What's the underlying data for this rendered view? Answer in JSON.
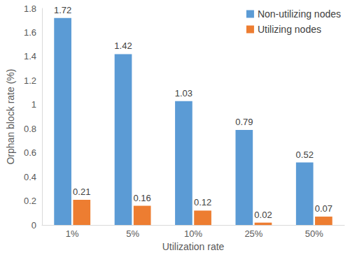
{
  "chart_data": {
    "type": "bar",
    "x_label": "Utilization rate",
    "y_label": "Orphan block rate (%)",
    "categories": [
      "1%",
      "5%",
      "10%",
      "25%",
      "50%"
    ],
    "series": [
      {
        "name": "Non-utilizing nodes",
        "color": "#5b9bd5",
        "values": [
          1.72,
          1.42,
          1.03,
          0.79,
          0.52
        ]
      },
      {
        "name": "Utilizing nodes",
        "color": "#ed7d31",
        "values": [
          0.21,
          0.16,
          0.12,
          0.02,
          0.07
        ]
      }
    ],
    "ylim": [
      0,
      1.8
    ],
    "yticks": [
      0,
      0.2,
      0.4,
      0.6,
      0.8,
      1,
      1.2,
      1.4,
      1.6,
      1.8
    ],
    "grid": false,
    "legend": "top-right",
    "data_labels": true
  }
}
